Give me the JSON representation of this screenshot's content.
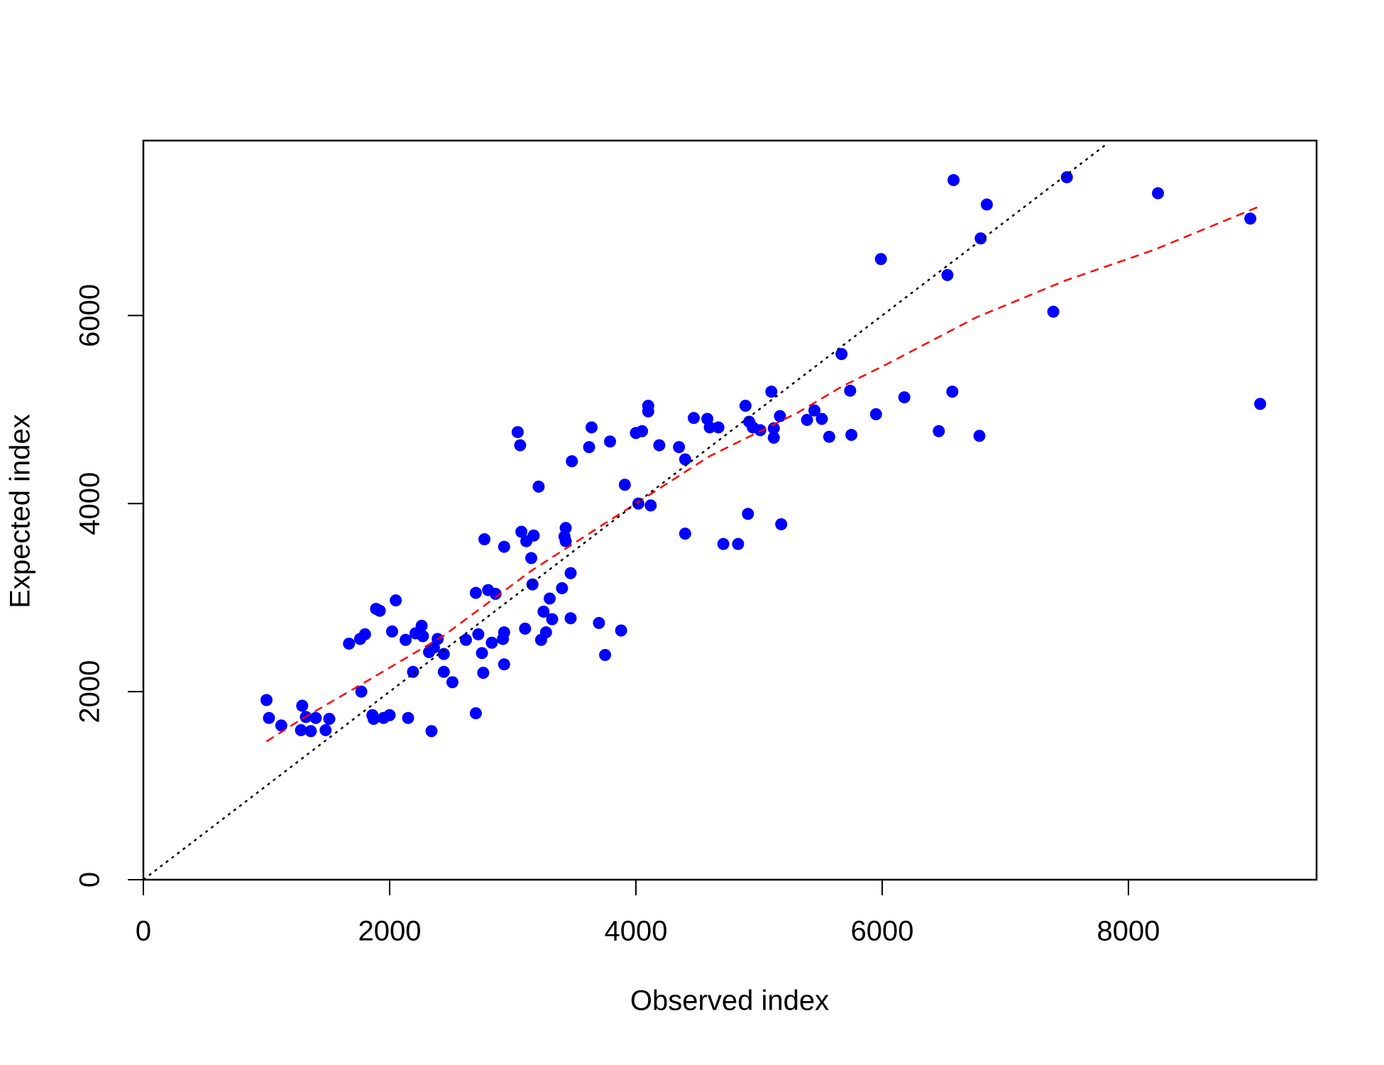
{
  "chart_data": {
    "type": "scatter",
    "x_label": "Observed index",
    "y_label": "Expected index",
    "xlim": [
      0,
      9528
    ],
    "ylim": [
      0,
      7860
    ],
    "xticks": [
      0,
      2000,
      4000,
      6000,
      8000
    ],
    "yticks": [
      0,
      2000,
      4000,
      6000
    ],
    "series": [
      {
        "type": "scatter",
        "color": "#0000ff",
        "x": [
          1000,
          1020,
          1120,
          1290,
          1280,
          1320,
          1360,
          1400,
          1480,
          1510,
          1770,
          1670,
          1760,
          1800,
          1860,
          1870,
          1890,
          1920,
          1950,
          2000,
          2020,
          2050,
          2130,
          2150,
          2190,
          2210,
          2260,
          2270,
          2320,
          2340,
          2360,
          2390,
          2440,
          2440,
          2510,
          2620,
          2700,
          2700,
          2720,
          2750,
          2760,
          2770,
          2800,
          2830,
          2860,
          2920,
          2930,
          2930,
          2930,
          3040,
          3060,
          3070,
          3100,
          3110,
          3150,
          3160,
          3170,
          3210,
          3230,
          3250,
          3270,
          3300,
          3320,
          3400,
          3420,
          3430,
          3430,
          3470,
          3470,
          3480,
          3620,
          3640,
          3700,
          3750,
          3790,
          3880,
          3910,
          4000,
          4020,
          4050,
          4100,
          4100,
          4120,
          4190,
          4350,
          4400,
          4400,
          4470,
          4580,
          4600,
          4670,
          4710,
          4830,
          4890,
          4910,
          4920,
          4950,
          5010,
          5100,
          5120,
          5120,
          5170,
          5180,
          5390,
          5450,
          5510,
          5570,
          5670,
          5740,
          5750,
          5950,
          5990,
          6180,
          6460,
          6530,
          6570,
          6580,
          6790,
          6800,
          6850,
          7390,
          7500,
          8240,
          8990,
          9070
        ],
        "values": [
          1910,
          1720,
          1640,
          1850,
          1590,
          1730,
          1580,
          1720,
          1590,
          1710,
          2000,
          2510,
          2560,
          2610,
          1750,
          1710,
          2880,
          2860,
          1720,
          1750,
          2640,
          2970,
          2550,
          1720,
          2210,
          2620,
          2700,
          2590,
          2420,
          1580,
          2470,
          2560,
          2210,
          2400,
          2100,
          2550,
          3050,
          1770,
          2610,
          2410,
          2200,
          3620,
          3080,
          2520,
          3040,
          2560,
          2630,
          2290,
          3540,
          4760,
          4620,
          3700,
          2670,
          3600,
          3420,
          3140,
          3660,
          4180,
          2550,
          2850,
          2630,
          2990,
          2770,
          3100,
          3650,
          3740,
          3600,
          3260,
          2780,
          4450,
          4600,
          4810,
          2730,
          2390,
          4660,
          2650,
          4200,
          4750,
          4000,
          4770,
          5040,
          4980,
          3980,
          4620,
          4600,
          4470,
          3680,
          4910,
          4900,
          4810,
          4810,
          3570,
          3570,
          5040,
          3890,
          4870,
          4810,
          4780,
          5190,
          4700,
          4800,
          4930,
          3780,
          4890,
          4990,
          4900,
          4710,
          5590,
          5200,
          4730,
          4950,
          6600,
          5130,
          4770,
          6430,
          5190,
          7440,
          4720,
          6820,
          7180,
          6040,
          7470,
          7300,
          7030,
          5060
        ]
      },
      {
        "type": "line",
        "color": "#ff0000",
        "dash": "dashed",
        "x": [
          1000,
          1283,
          1773,
          2436,
          3157,
          3877,
          4598,
          5319,
          5679,
          6039,
          6760,
          7481,
          8202,
          9066
        ],
        "values": [
          1470,
          1706,
          2079,
          2592,
          3291,
          3897,
          4503,
          4970,
          5249,
          5483,
          5977,
          6368,
          6695,
          7161
        ]
      },
      {
        "type": "line",
        "color": "#000000",
        "dash": "dotted",
        "x": [
          0,
          7830
        ],
        "values": [
          0,
          7830
        ]
      }
    ]
  }
}
